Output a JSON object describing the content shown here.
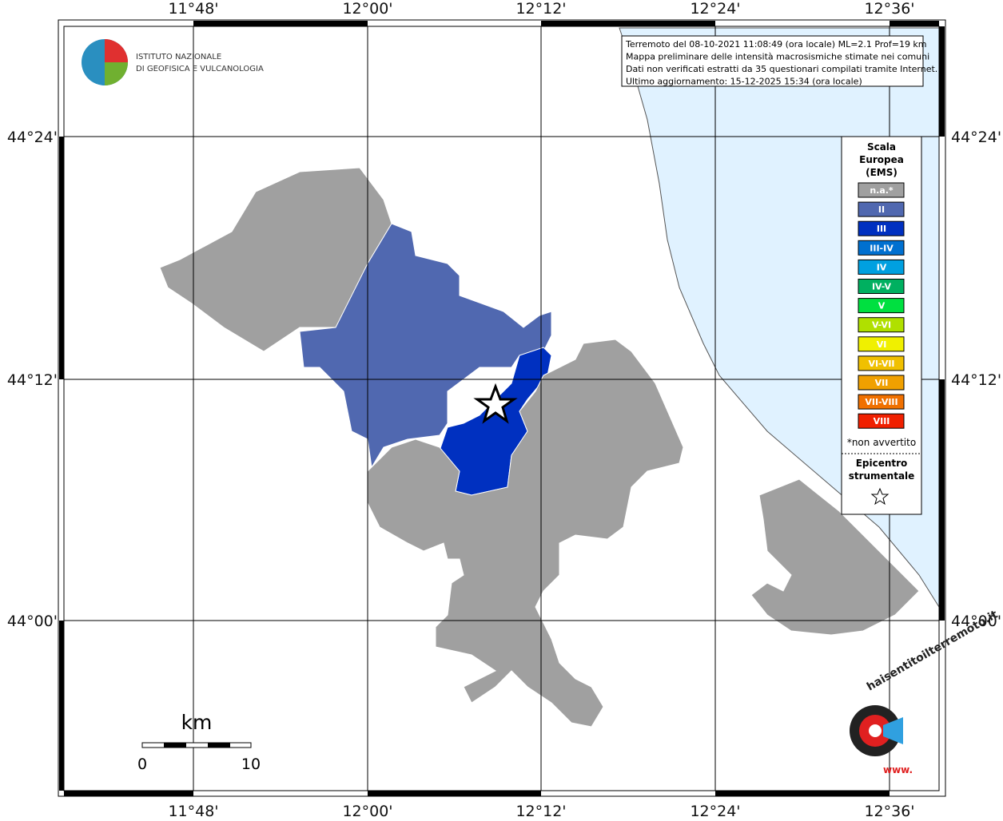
{
  "header": {
    "logo_lines": [
      "ISTITUTO NAZIONALE",
      "DI GEOFISICA E VULCANOLOGIA"
    ],
    "info_lines": [
      "Terremoto del 08-10-2021 11:08:49 (ora locale) ML=2.1 Prof=19 km",
      "Mappa preliminare delle intensità macrosismiche stimate nei comuni",
      "Dati non verificati estratti da 35 questionari compilati tramite Internet.",
      "Ultimo aggiornamento: 15-12-2025 15:34 (ora locale)"
    ]
  },
  "map": {
    "lon_labels": [
      "11°48'",
      "12°00'",
      "12°12'",
      "12°24'",
      "12°36'"
    ],
    "lat_labels": [
      "44°24'",
      "44°12'",
      "44°00'"
    ]
  },
  "legend": {
    "title_lines": [
      "Scala",
      "Europea",
      "(EMS)"
    ],
    "items": [
      {
        "label": "n.a.*",
        "color": "#a0a0a0"
      },
      {
        "label": "II",
        "color": "#5068b0"
      },
      {
        "label": "III",
        "color": "#0030c0"
      },
      {
        "label": "III-IV",
        "color": "#0070d0"
      },
      {
        "label": "IV",
        "color": "#00a0e0"
      },
      {
        "label": "IV-V",
        "color": "#00b060"
      },
      {
        "label": "V",
        "color": "#00e040"
      },
      {
        "label": "V-VI",
        "color": "#b0e000"
      },
      {
        "label": "VI",
        "color": "#f0f000"
      },
      {
        "label": "VI-VII",
        "color": "#f0c000"
      },
      {
        "label": "VII",
        "color": "#f0a000"
      },
      {
        "label": "VII-VIII",
        "color": "#f07000"
      },
      {
        "label": "VIII",
        "color": "#f02000"
      }
    ],
    "note": "*non avvertito",
    "epicenter_lines": [
      "Epicentro",
      "strumentale"
    ]
  },
  "scale": {
    "unit": "km",
    "min": 0,
    "max": 10
  },
  "badge": {
    "text": "haisentitoilterremoto.it",
    "www": "www."
  }
}
